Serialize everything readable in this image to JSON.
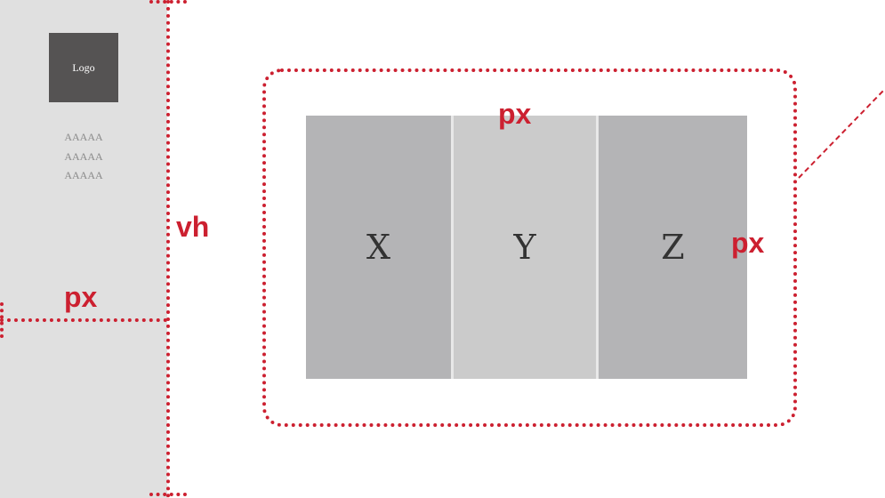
{
  "sidebar": {
    "logo_text": "Logo",
    "items": [
      {
        "label": "AAAAA"
      },
      {
        "label": "AAAAA"
      },
      {
        "label": "AAAAA"
      }
    ]
  },
  "content": {
    "panels": [
      {
        "label": "X"
      },
      {
        "label": "Y"
      },
      {
        "label": "Z"
      }
    ]
  },
  "annotations": {
    "sidebar_height_unit": "vh",
    "sidebar_width_unit": "px",
    "panel_top_unit": "px",
    "panel_right_unit": "px"
  },
  "colors": {
    "annotation_red": "#cc2030",
    "sidebar_bg": "#e0e0e0",
    "logo_bg": "#555353",
    "panel_dark": "#b4b4b6",
    "panel_light": "#cbcbcb"
  }
}
